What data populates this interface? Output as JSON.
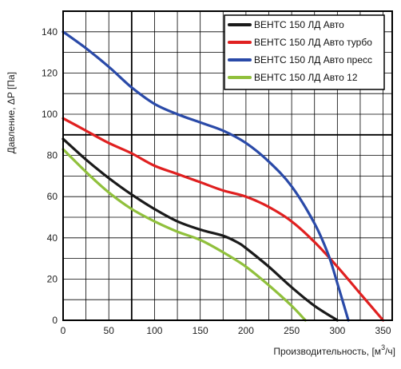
{
  "chart_data": {
    "type": "line",
    "xlabel": "Производительность, [м",
    "xlabel_sup": "3",
    "xlabel_end": "/ч]",
    "ylabel": "Давление, ΔP [Па]",
    "xlim": [
      0,
      360
    ],
    "ylim": [
      0,
      150
    ],
    "xticks": [
      0,
      50,
      100,
      150,
      200,
      250,
      300,
      350
    ],
    "yticks": [
      0,
      20,
      40,
      60,
      80,
      100,
      120,
      140
    ],
    "x_gridlines": [
      0,
      25,
      50,
      75,
      100,
      125,
      150,
      175,
      200,
      225,
      250,
      275,
      300,
      325,
      350
    ],
    "y_gridlines": [
      0,
      10,
      20,
      30,
      40,
      50,
      60,
      70,
      80,
      90,
      100,
      110,
      120,
      130,
      140
    ],
    "legend_position": "top-right",
    "series": [
      {
        "name": "ВЕНТС 150 ЛД Авто",
        "color": "#1a1a1a",
        "points": [
          [
            0,
            88
          ],
          [
            25,
            78
          ],
          [
            50,
            69
          ],
          [
            75,
            61
          ],
          [
            100,
            54
          ],
          [
            125,
            48
          ],
          [
            150,
            44
          ],
          [
            175,
            41
          ],
          [
            190,
            38
          ],
          [
            200,
            35
          ],
          [
            225,
            26
          ],
          [
            250,
            16
          ],
          [
            275,
            7
          ],
          [
            300,
            0
          ]
        ]
      },
      {
        "name": "ВЕНТС 150 ЛД Авто турбо",
        "color": "#e02020",
        "points": [
          [
            0,
            98
          ],
          [
            25,
            92
          ],
          [
            50,
            86
          ],
          [
            75,
            81
          ],
          [
            100,
            75
          ],
          [
            125,
            71
          ],
          [
            150,
            67
          ],
          [
            175,
            63
          ],
          [
            200,
            60
          ],
          [
            225,
            55
          ],
          [
            250,
            48
          ],
          [
            275,
            38
          ],
          [
            300,
            26
          ],
          [
            325,
            13
          ],
          [
            350,
            0
          ]
        ]
      },
      {
        "name": "ВЕНТС 150 ЛД Авто пресс",
        "color": "#2a4aa8",
        "points": [
          [
            0,
            140
          ],
          [
            25,
            132
          ],
          [
            50,
            123
          ],
          [
            75,
            113
          ],
          [
            100,
            105
          ],
          [
            125,
            100
          ],
          [
            150,
            96
          ],
          [
            175,
            92
          ],
          [
            200,
            86
          ],
          [
            225,
            77
          ],
          [
            250,
            65
          ],
          [
            275,
            47
          ],
          [
            290,
            32
          ],
          [
            300,
            18
          ],
          [
            312,
            0
          ]
        ]
      },
      {
        "name": "ВЕНТС 150 ЛД Авто 12",
        "color": "#90c03c",
        "points": [
          [
            0,
            83
          ],
          [
            25,
            72
          ],
          [
            50,
            62
          ],
          [
            75,
            54
          ],
          [
            100,
            48
          ],
          [
            125,
            43
          ],
          [
            150,
            39
          ],
          [
            175,
            33
          ],
          [
            200,
            26
          ],
          [
            225,
            17
          ],
          [
            250,
            7
          ],
          [
            265,
            0
          ]
        ]
      }
    ]
  }
}
